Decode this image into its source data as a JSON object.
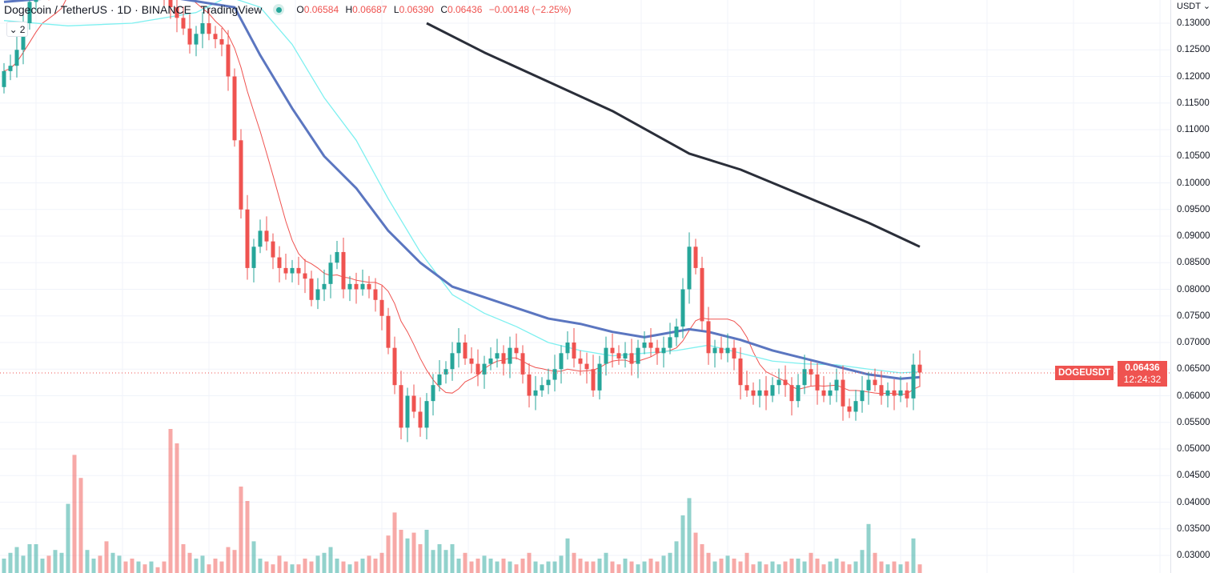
{
  "header": {
    "title": "Dogecoin / TetherUS · 1D · BINANCE   TradingView",
    "status": "market-open-dot",
    "ohlc": {
      "o_label": "O",
      "o": "0.06584",
      "h_label": "H",
      "h": "0.06687",
      "l_label": "L",
      "l": "0.06390",
      "c_label": "C",
      "c": "0.06436",
      "change": "−0.00148 (−2.25%)"
    },
    "indicators_toggle": "2"
  },
  "price_axis": {
    "unit": "USDT",
    "ticks": [
      "0.13000",
      "0.12500",
      "0.12000",
      "0.11500",
      "0.11000",
      "0.10500",
      "0.10000",
      "0.09500",
      "0.09000",
      "0.08500",
      "0.08000",
      "0.07500",
      "0.07000",
      "0.06500",
      "0.06000",
      "0.05500",
      "0.05000",
      "0.04500",
      "0.04000",
      "0.03500",
      "0.03000"
    ]
  },
  "last_price": {
    "symbol": "DOGEUSDT",
    "price": "0.06436",
    "countdown": "12:24:32"
  },
  "colors": {
    "up": "#26a69a",
    "down": "#ef5350",
    "ma_fast": "#ef5350",
    "ma_cyan": "#7ef0f0",
    "ma_blue": "#5b76c0",
    "ma_long": "#2a2e39"
  },
  "chart_data": {
    "type": "candlestick",
    "ylim": [
      0.03,
      0.13
    ],
    "first_open": 0.118,
    "close": [
      0.121,
      0.122,
      0.125,
      0.13,
      0.134,
      0.138,
      0.14,
      0.137,
      0.139,
      0.142,
      0.145,
      0.14,
      0.138,
      0.141,
      0.143,
      0.14,
      0.139,
      0.142,
      0.144,
      0.141,
      0.139,
      0.14,
      0.138,
      0.141,
      0.137,
      0.135,
      0.133,
      0.131,
      0.129,
      0.126,
      0.128,
      0.13,
      0.128,
      0.127,
      0.126,
      0.12,
      0.108,
      0.095,
      0.084,
      0.088,
      0.091,
      0.089,
      0.086,
      0.084,
      0.083,
      0.084,
      0.083,
      0.082,
      0.078,
      0.08,
      0.081,
      0.085,
      0.087,
      0.08,
      0.081,
      0.08,
      0.081,
      0.08,
      0.078,
      0.075,
      0.069,
      0.062,
      0.054,
      0.06,
      0.057,
      0.054,
      0.059,
      0.062,
      0.064,
      0.065,
      0.068,
      0.07,
      0.067,
      0.066,
      0.064,
      0.066,
      0.067,
      0.068,
      0.066,
      0.069,
      0.068,
      0.064,
      0.06,
      0.061,
      0.062,
      0.063,
      0.065,
      0.068,
      0.07,
      0.067,
      0.066,
      0.065,
      0.061,
      0.066,
      0.069,
      0.068,
      0.067,
      0.068,
      0.066,
      0.069,
      0.07,
      0.069,
      0.068,
      0.069,
      0.071,
      0.073,
      0.08,
      0.088,
      0.084,
      0.074,
      0.068,
      0.069,
      0.068,
      0.069,
      0.067,
      0.062,
      0.061,
      0.06,
      0.061,
      0.06,
      0.062,
      0.063,
      0.062,
      0.059,
      0.062,
      0.065,
      0.064,
      0.061,
      0.06,
      0.061,
      0.063,
      0.058,
      0.057,
      0.059,
      0.061,
      0.063,
      0.062,
      0.06,
      0.061,
      0.06,
      0.061,
      0.0595,
      0.06584,
      0.06436
    ],
    "volume": [
      10,
      14,
      18,
      12,
      20,
      20,
      10,
      12,
      16,
      14,
      48,
      82,
      66,
      16,
      10,
      12,
      22,
      14,
      12,
      8,
      10,
      8,
      6,
      8,
      4,
      8,
      100,
      90,
      20,
      14,
      10,
      12,
      6,
      10,
      8,
      18,
      16,
      60,
      50,
      22,
      10,
      8,
      6,
      12,
      8,
      6,
      6,
      10,
      8,
      12,
      14,
      18,
      10,
      8,
      6,
      8,
      10,
      12,
      10,
      14,
      26,
      42,
      30,
      24,
      28,
      20,
      30,
      16,
      20,
      16,
      20,
      10,
      14,
      8,
      10,
      12,
      10,
      8,
      10,
      8,
      6,
      10,
      14,
      8,
      6,
      8,
      8,
      12,
      24,
      14,
      10,
      8,
      8,
      10,
      14,
      8,
      6,
      10,
      8,
      6,
      8,
      10,
      8,
      12,
      14,
      22,
      40,
      52,
      28,
      20,
      14,
      8,
      10,
      12,
      10,
      8,
      14,
      6,
      8,
      6,
      8,
      6,
      8,
      10,
      10,
      8,
      14,
      10,
      6,
      8,
      10,
      8,
      6,
      8,
      16,
      34,
      14,
      8,
      6,
      8,
      6,
      8,
      24,
      6
    ],
    "ma_lines": [
      {
        "color_key": "ma_long",
        "width": 3,
        "points": [
          [
            66,
            0.13
          ],
          [
            75,
            0.1245
          ],
          [
            85,
            0.119
          ],
          [
            95,
            0.1135
          ],
          [
            107,
            0.1055
          ],
          [
            115,
            0.1025
          ],
          [
            125,
            0.0975
          ],
          [
            135,
            0.0925
          ],
          [
            143,
            0.088
          ]
        ]
      },
      {
        "color_key": "ma_cyan",
        "width": 1.3,
        "points": [
          [
            0,
            0.1305
          ],
          [
            10,
            0.1295
          ],
          [
            20,
            0.13
          ],
          [
            30,
            0.132
          ],
          [
            35,
            0.135
          ],
          [
            40,
            0.133
          ],
          [
            45,
            0.126
          ],
          [
            50,
            0.116
          ],
          [
            55,
            0.108
          ],
          [
            60,
            0.097
          ],
          [
            65,
            0.087
          ],
          [
            70,
            0.079
          ],
          [
            75,
            0.0755
          ],
          [
            80,
            0.073
          ],
          [
            85,
            0.07
          ],
          [
            90,
            0.0685
          ],
          [
            95,
            0.0675
          ],
          [
            100,
            0.068
          ],
          [
            105,
            0.0685
          ],
          [
            110,
            0.0695
          ],
          [
            115,
            0.068
          ],
          [
            120,
            0.0665
          ],
          [
            125,
            0.066
          ],
          [
            130,
            0.0658
          ],
          [
            135,
            0.065
          ],
          [
            140,
            0.0643
          ],
          [
            143,
            0.0645
          ]
        ]
      },
      {
        "color_key": "ma_blue",
        "width": 3,
        "points": [
          [
            0,
            0.134
          ],
          [
            20,
            0.136
          ],
          [
            36,
            0.133
          ],
          [
            40,
            0.124
          ],
          [
            45,
            0.114
          ],
          [
            50,
            0.105
          ],
          [
            55,
            0.099
          ],
          [
            60,
            0.091
          ],
          [
            65,
            0.085
          ],
          [
            70,
            0.0805
          ],
          [
            75,
            0.0785
          ],
          [
            80,
            0.0765
          ],
          [
            85,
            0.0745
          ],
          [
            90,
            0.0735
          ],
          [
            95,
            0.072
          ],
          [
            100,
            0.071
          ],
          [
            107,
            0.0725
          ],
          [
            110,
            0.072
          ],
          [
            115,
            0.0705
          ],
          [
            120,
            0.0685
          ],
          [
            125,
            0.067
          ],
          [
            130,
            0.0655
          ],
          [
            135,
            0.064
          ],
          [
            140,
            0.0632
          ],
          [
            143,
            0.0635
          ]
        ]
      }
    ]
  }
}
